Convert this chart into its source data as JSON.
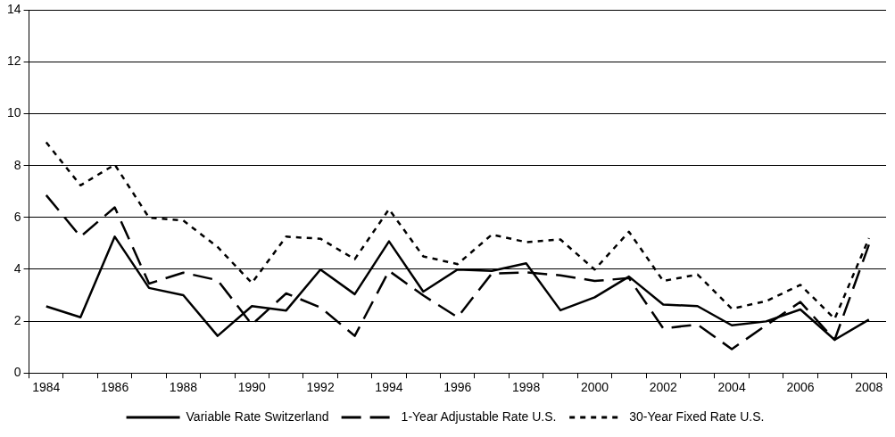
{
  "chart_data": {
    "type": "line",
    "categories": [
      "1984",
      null,
      "1986",
      null,
      "1988",
      null,
      "1990",
      null,
      "1992",
      null,
      "1994",
      null,
      "1996",
      null,
      "1998",
      null,
      "2000",
      null,
      "2002",
      null,
      "2004",
      null,
      "2006",
      null,
      "2008"
    ],
    "series": [
      {
        "name": "Variable Rate Switzerland",
        "color": "#000000",
        "line_style": "solid",
        "values": [
          2.57,
          2.15,
          5.26,
          3.28,
          3.0,
          1.43,
          2.58,
          2.41,
          3.99,
          3.04,
          5.08,
          3.14,
          3.99,
          3.94,
          4.23,
          2.42,
          2.92,
          3.72,
          2.64,
          2.58,
          1.84,
          1.99,
          2.45,
          1.28,
          2.06
        ]
      },
      {
        "name": "1-Year Adjustable Rate U.S.",
        "color": "#000000",
        "line_style": "dashed",
        "values": [
          6.86,
          5.26,
          6.39,
          3.45,
          3.87,
          3.58,
          1.87,
          3.07,
          2.53,
          1.43,
          3.94,
          2.99,
          2.15,
          3.84,
          3.88,
          3.77,
          3.55,
          3.66,
          1.72,
          1.87,
          0.92,
          1.84,
          2.74,
          1.28,
          4.95
        ]
      },
      {
        "name": "30-Year Fixed Rate U.S.",
        "color": "#000000",
        "line_style": "dotted",
        "values": [
          8.9,
          7.24,
          8.04,
          5.99,
          5.88,
          4.86,
          3.47,
          5.26,
          5.18,
          4.39,
          6.32,
          4.5,
          4.2,
          5.34,
          5.05,
          5.15,
          3.99,
          5.45,
          3.55,
          3.8,
          2.48,
          2.77,
          3.4,
          2.09,
          5.2
        ]
      }
    ],
    "ylim": [
      0,
      14
    ],
    "yticks": [
      0,
      2,
      4,
      6,
      8,
      10,
      12,
      14
    ],
    "grid": "y",
    "legend": "bottom",
    "marker": "none"
  }
}
